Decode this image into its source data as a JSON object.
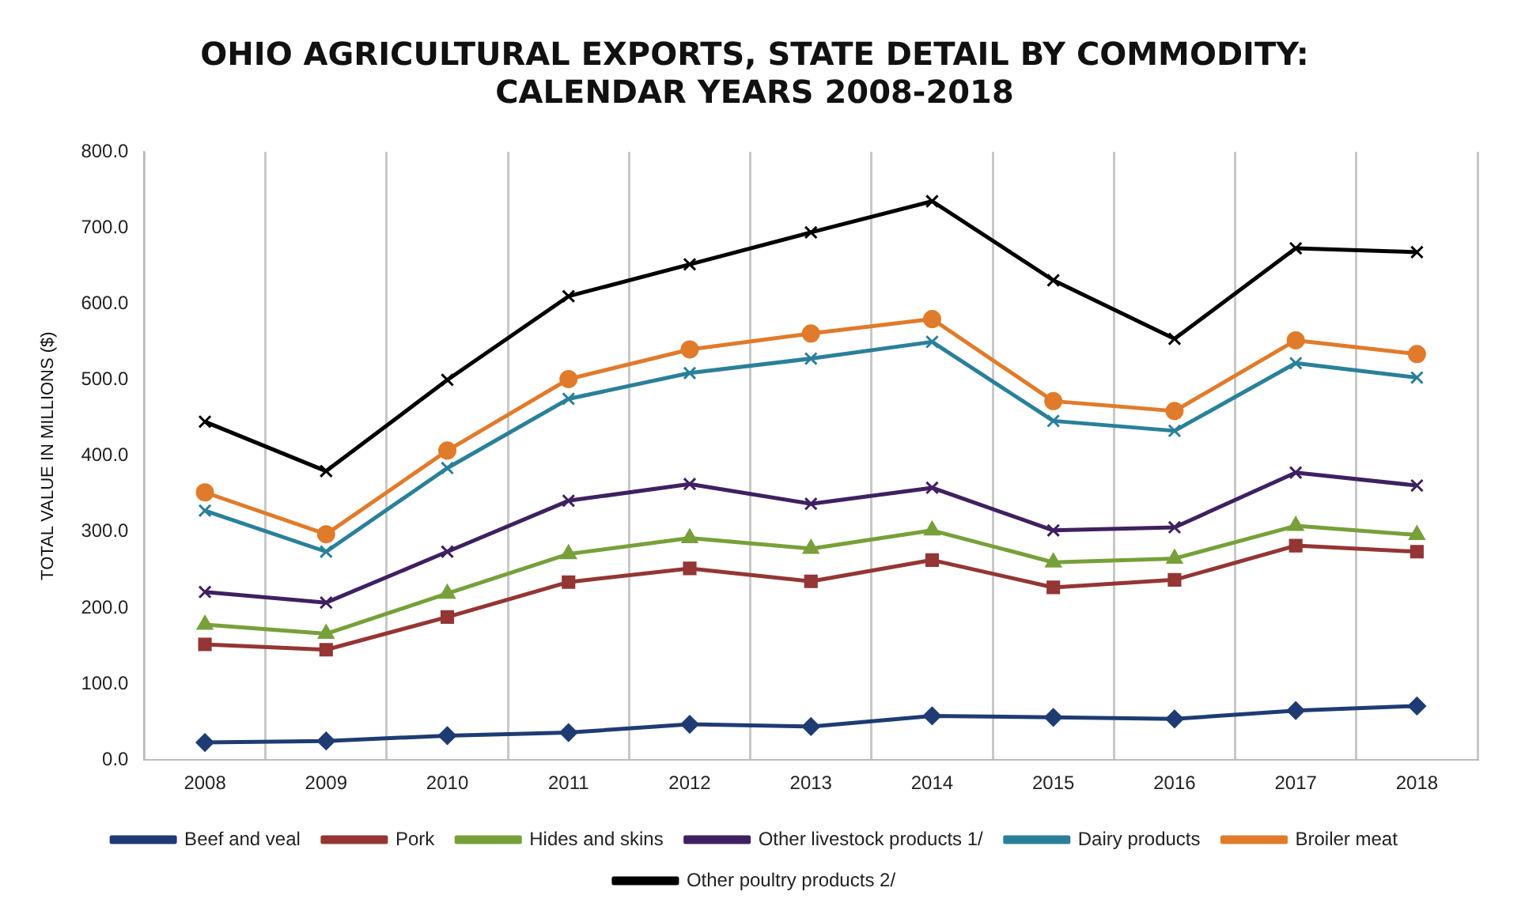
{
  "chart_data": {
    "type": "line",
    "title": "OHIO AGRICULTURAL EXPORTS, STATE DETAIL BY COMMODITY:\nCALENDAR YEARS 2008-2018",
    "ylabel": "TOTAL VALUE IN MILLIONS ($)",
    "categories": [
      "2008",
      "2009",
      "2010",
      "2011",
      "2012",
      "2013",
      "2014",
      "2015",
      "2016",
      "2017",
      "2018"
    ],
    "ylim": [
      0,
      800
    ],
    "yticks": [
      {
        "value": 0,
        "label": "0.0"
      },
      {
        "value": 100,
        "label": "100.0"
      },
      {
        "value": 200,
        "label": "200.0"
      },
      {
        "value": 300,
        "label": "300.0"
      },
      {
        "value": 400,
        "label": "400.0"
      },
      {
        "value": 500,
        "label": "500.0"
      },
      {
        "value": 600,
        "label": "600.0"
      },
      {
        "value": 700,
        "label": "700.0"
      },
      {
        "value": 800,
        "label": "800.0"
      }
    ],
    "grid": "x",
    "legend": "bottom",
    "line_style": "solid",
    "series": [
      {
        "name": "Beef and veal",
        "color": "#1f3b73",
        "marker": "diamond",
        "values": [
          23,
          25,
          32,
          36,
          47,
          44,
          58,
          56,
          54,
          65,
          71
        ]
      },
      {
        "name": "Pork",
        "color": "#943634",
        "marker": "square",
        "values": [
          152,
          145,
          188,
          234,
          252,
          235,
          263,
          227,
          237,
          282,
          274
        ]
      },
      {
        "name": "Hides and skins",
        "color": "#77a03a",
        "marker": "triangle",
        "values": [
          178,
          166,
          219,
          271,
          292,
          278,
          302,
          260,
          265,
          308,
          296
        ]
      },
      {
        "name": "Other livestock products 1/",
        "color": "#3f2060",
        "marker": "cross",
        "values": [
          221,
          207,
          274,
          341,
          363,
          337,
          358,
          302,
          306,
          378,
          361
        ]
      },
      {
        "name": "Dairy products",
        "color": "#2a8099",
        "marker": "cross",
        "values": [
          328,
          274,
          384,
          475,
          509,
          528,
          550,
          446,
          433,
          522,
          503
        ]
      },
      {
        "name": "Broiler meat",
        "color": "#e07b2b",
        "marker": "circle",
        "values": [
          352,
          297,
          407,
          501,
          540,
          561,
          580,
          472,
          459,
          552,
          534
        ]
      },
      {
        "name": "Other poultry products 2/",
        "color": "#000000",
        "marker": "cross",
        "values": [
          445,
          380,
          500,
          610,
          652,
          694,
          735,
          631,
          554,
          673,
          668
        ]
      }
    ]
  }
}
